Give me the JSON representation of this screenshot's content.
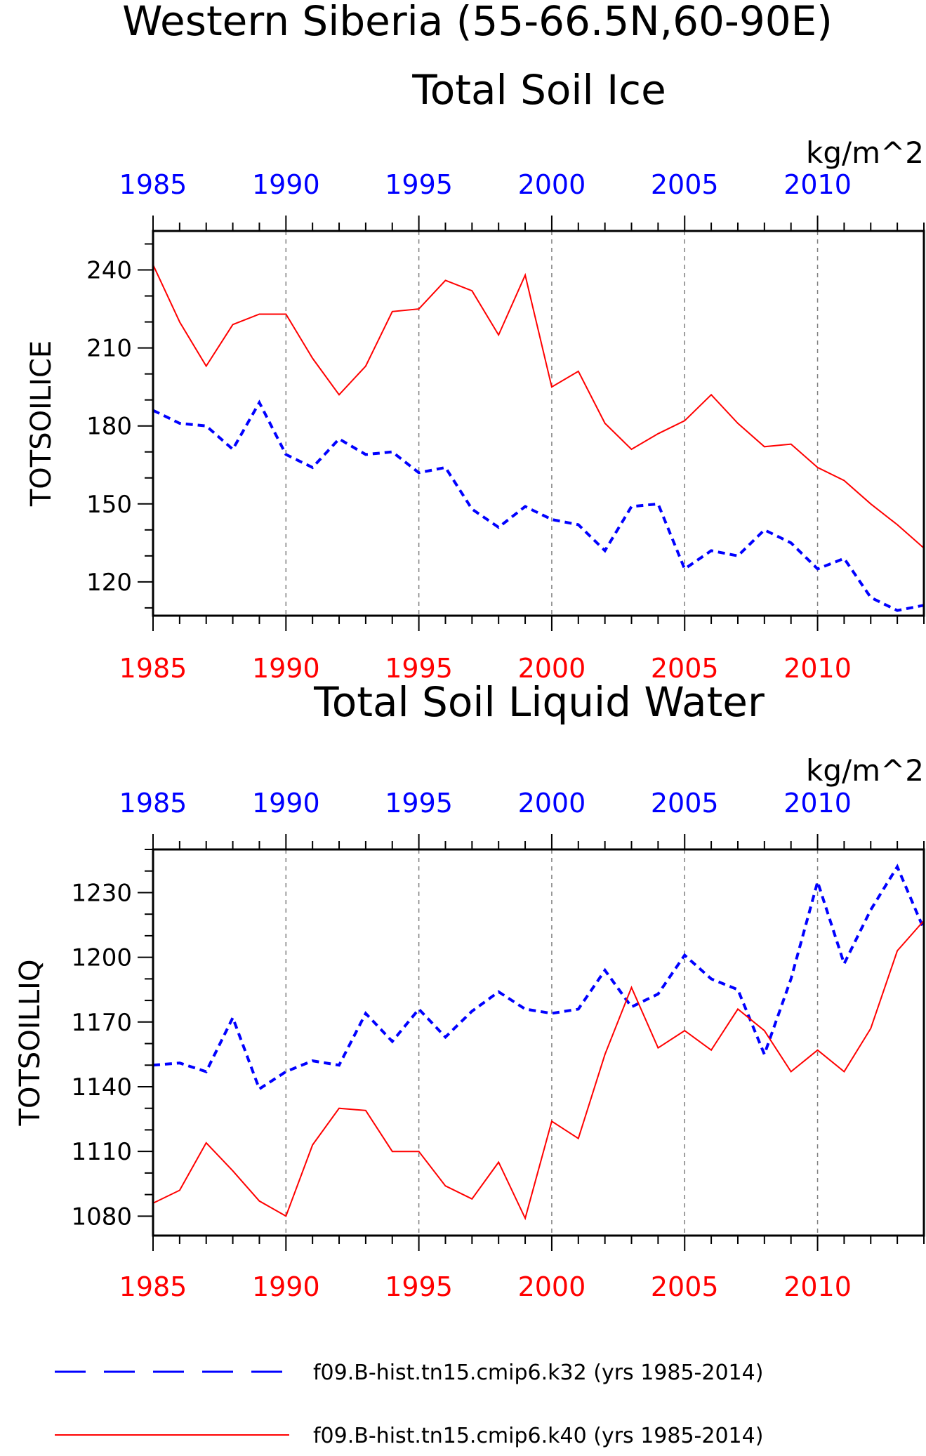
{
  "title": "Western Siberia (55-66.5N,60-90E)",
  "colors": {
    "k32": "#0000ff",
    "k40": "#ff0000",
    "axis": "#000000",
    "grid": "#808080"
  },
  "legend": [
    {
      "label": "f09.B-hist.tn15.cmip6.k32 (yrs 1985-2014)",
      "color": "#0000ff",
      "style": "dashed"
    },
    {
      "label": "f09.B-hist.tn15.cmip6.k40 (yrs 1985-2014)",
      "color": "#ff0000",
      "style": "solid"
    }
  ],
  "chart_data": [
    {
      "type": "line",
      "title": "Total Soil Ice",
      "units": "kg/m^2",
      "ylabel": "TOTSOILICE",
      "xlabel": "",
      "grid": "vertical dashed at 5-year ticks",
      "x": [
        1985,
        1986,
        1987,
        1988,
        1989,
        1990,
        1991,
        1992,
        1993,
        1994,
        1995,
        1996,
        1997,
        1998,
        1999,
        2000,
        2001,
        2002,
        2003,
        2004,
        2005,
        2006,
        2007,
        2008,
        2009,
        2010,
        2011,
        2012,
        2013,
        2014
      ],
      "xlim": [
        1985,
        2014
      ],
      "ylim": [
        107,
        255
      ],
      "xticks": [
        "1985",
        "1990",
        "1995",
        "2000",
        "2005",
        "2010"
      ],
      "yticks": [
        "120",
        "150",
        "180",
        "210",
        "240"
      ],
      "series": [
        {
          "name": "f09.B-hist.tn15.cmip6.k32 (yrs 1985-2014)",
          "color": "#0000ff",
          "style": "dashed",
          "values": [
            186,
            181,
            180,
            171,
            189,
            169,
            164,
            175,
            169,
            170,
            162,
            164,
            148,
            141,
            149,
            144,
            142,
            132,
            149,
            150,
            125,
            132,
            130,
            140,
            135,
            125,
            129,
            114,
            109,
            111
          ]
        },
        {
          "name": "f09.B-hist.tn15.cmip6.k40 (yrs 1985-2014)",
          "color": "#ff0000",
          "style": "solid",
          "values": [
            242,
            220,
            203,
            219,
            223,
            223,
            206,
            192,
            203,
            224,
            225,
            236,
            232,
            215,
            238,
            195,
            201,
            181,
            171,
            177,
            182,
            192,
            181,
            172,
            173,
            164,
            159,
            150,
            142,
            133
          ]
        }
      ]
    },
    {
      "type": "line",
      "title": "Total Soil Liquid Water",
      "units": "kg/m^2",
      "ylabel": "TOTSOILLIQ",
      "xlabel": "",
      "grid": "vertical dashed at 5-year ticks",
      "x": [
        1985,
        1986,
        1987,
        1988,
        1989,
        1990,
        1991,
        1992,
        1993,
        1994,
        1995,
        1996,
        1997,
        1998,
        1999,
        2000,
        2001,
        2002,
        2003,
        2004,
        2005,
        2006,
        2007,
        2008,
        2009,
        2010,
        2011,
        2012,
        2013,
        2014
      ],
      "xlim": [
        1985,
        2014
      ],
      "ylim": [
        1071,
        1250
      ],
      "xticks": [
        "1985",
        "1990",
        "1995",
        "2000",
        "2005",
        "2010"
      ],
      "yticks": [
        "1080",
        "1110",
        "1140",
        "1170",
        "1200",
        "1230"
      ],
      "series": [
        {
          "name": "f09.B-hist.tn15.cmip6.k32 (yrs 1985-2014)",
          "color": "#0000ff",
          "style": "dashed",
          "values": [
            1150,
            1151,
            1147,
            1172,
            1139,
            1147,
            1152,
            1150,
            1174,
            1161,
            1176,
            1163,
            1175,
            1184,
            1176,
            1174,
            1176,
            1194,
            1177,
            1183,
            1201,
            1190,
            1185,
            1155,
            1190,
            1235,
            1197,
            1222,
            1242,
            1213
          ]
        },
        {
          "name": "f09.B-hist.tn15.cmip6.k40 (yrs 1985-2014)",
          "color": "#ff0000",
          "style": "solid",
          "values": [
            1086,
            1092,
            1114,
            1101,
            1087,
            1080,
            1113,
            1130,
            1129,
            1110,
            1110,
            1094,
            1088,
            1105,
            1079,
            1124,
            1116,
            1155,
            1186,
            1158,
            1166,
            1157,
            1176,
            1166,
            1147,
            1157,
            1147,
            1167,
            1203,
            1217
          ]
        }
      ]
    }
  ]
}
